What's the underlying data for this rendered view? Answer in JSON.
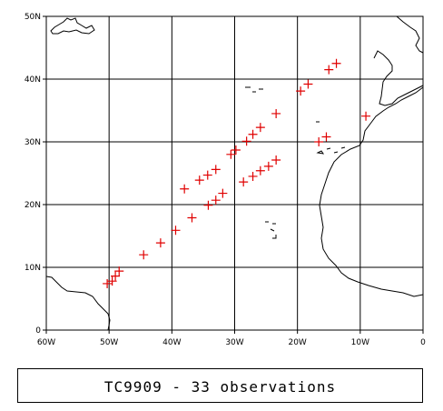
{
  "map": {
    "lon_range": [
      -60,
      0
    ],
    "lat_range": [
      0,
      50
    ],
    "grid": true,
    "lon_ticks": [
      {
        "value": -60,
        "label": "60W"
      },
      {
        "value": -50,
        "label": "50W"
      },
      {
        "value": -40,
        "label": "40W"
      },
      {
        "value": -30,
        "label": "30W"
      },
      {
        "value": -20,
        "label": "20W"
      },
      {
        "value": -10,
        "label": "10W"
      },
      {
        "value": 0,
        "label": "0"
      }
    ],
    "lat_ticks": [
      {
        "value": 0,
        "label": "0"
      },
      {
        "value": 10,
        "label": "10N"
      },
      {
        "value": 20,
        "label": "20N"
      },
      {
        "value": 30,
        "label": "30N"
      },
      {
        "value": 40,
        "label": "40N"
      },
      {
        "value": 50,
        "label": "50N"
      }
    ],
    "marker_color": "#e00000",
    "observations": [
      {
        "lon": -50.3,
        "lat": 7.4
      },
      {
        "lon": -49.5,
        "lat": 7.8
      },
      {
        "lon": -49.0,
        "lat": 8.6
      },
      {
        "lon": -48.4,
        "lat": 9.4
      },
      {
        "lon": -44.5,
        "lat": 12.0
      },
      {
        "lon": -41.8,
        "lat": 13.9
      },
      {
        "lon": -39.4,
        "lat": 15.9
      },
      {
        "lon": -36.8,
        "lat": 17.9
      },
      {
        "lon": -34.2,
        "lat": 19.9
      },
      {
        "lon": -33.0,
        "lat": 20.7
      },
      {
        "lon": -31.9,
        "lat": 21.8
      },
      {
        "lon": -28.6,
        "lat": 23.6
      },
      {
        "lon": -27.1,
        "lat": 24.5
      },
      {
        "lon": -25.9,
        "lat": 25.4
      },
      {
        "lon": -24.6,
        "lat": 26.1
      },
      {
        "lon": -23.4,
        "lat": 27.1
      },
      {
        "lon": -38.0,
        "lat": 22.5
      },
      {
        "lon": -35.6,
        "lat": 23.9
      },
      {
        "lon": -34.3,
        "lat": 24.7
      },
      {
        "lon": -33.0,
        "lat": 25.6
      },
      {
        "lon": -30.6,
        "lat": 28.0
      },
      {
        "lon": -29.8,
        "lat": 28.7
      },
      {
        "lon": -28.1,
        "lat": 30.1
      },
      {
        "lon": -27.1,
        "lat": 31.2
      },
      {
        "lon": -25.9,
        "lat": 32.3
      },
      {
        "lon": -23.4,
        "lat": 34.5
      },
      {
        "lon": -19.5,
        "lat": 38.1
      },
      {
        "lon": -18.3,
        "lat": 39.2
      },
      {
        "lon": -15.0,
        "lat": 41.5
      },
      {
        "lon": -13.8,
        "lat": 42.5
      },
      {
        "lon": -9.1,
        "lat": 34.1
      },
      {
        "lon": -15.4,
        "lat": 30.8
      },
      {
        "lon": -16.6,
        "lat": 30.0
      }
    ]
  },
  "caption": {
    "text": "TC9909 - 33 observations"
  }
}
